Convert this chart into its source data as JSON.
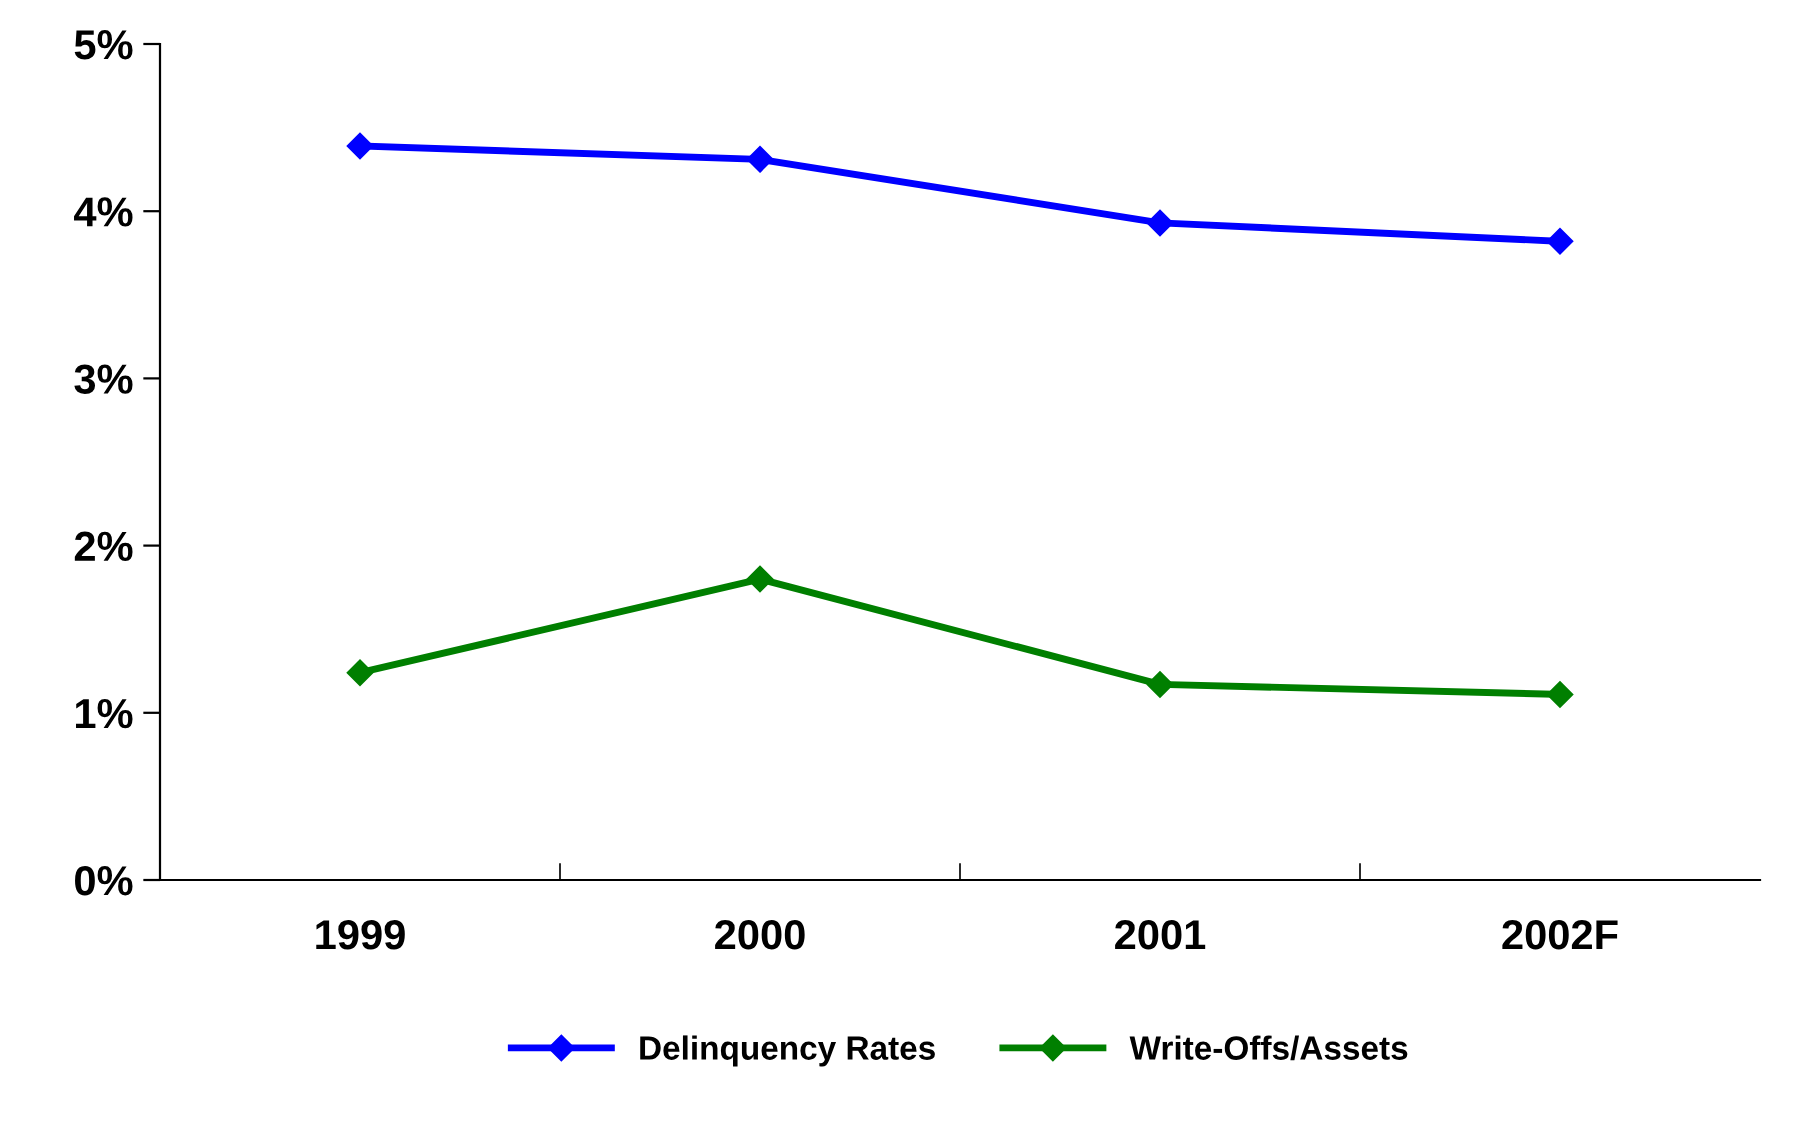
{
  "chart_data": {
    "type": "line",
    "categories": [
      "1999",
      "2000",
      "2001",
      "2002F"
    ],
    "series": [
      {
        "name": "Delinquency Rates",
        "color": "#0000ff",
        "values": [
          4.39,
          4.31,
          3.93,
          3.82
        ]
      },
      {
        "name": "Write-Offs/Assets",
        "color": "#007f00",
        "values": [
          1.24,
          1.8,
          1.17,
          1.11
        ]
      }
    ],
    "ylim": [
      0,
      5
    ],
    "yticks": [
      {
        "value": 0,
        "label": "0%"
      },
      {
        "value": 1,
        "label": "1%"
      },
      {
        "value": 2,
        "label": "2%"
      },
      {
        "value": 3,
        "label": "3%"
      },
      {
        "value": 4,
        "label": "4%"
      },
      {
        "value": 5,
        "label": "5%"
      }
    ],
    "marker": "diamond",
    "line_style": "solid",
    "grid": false,
    "legend": "bottom"
  }
}
